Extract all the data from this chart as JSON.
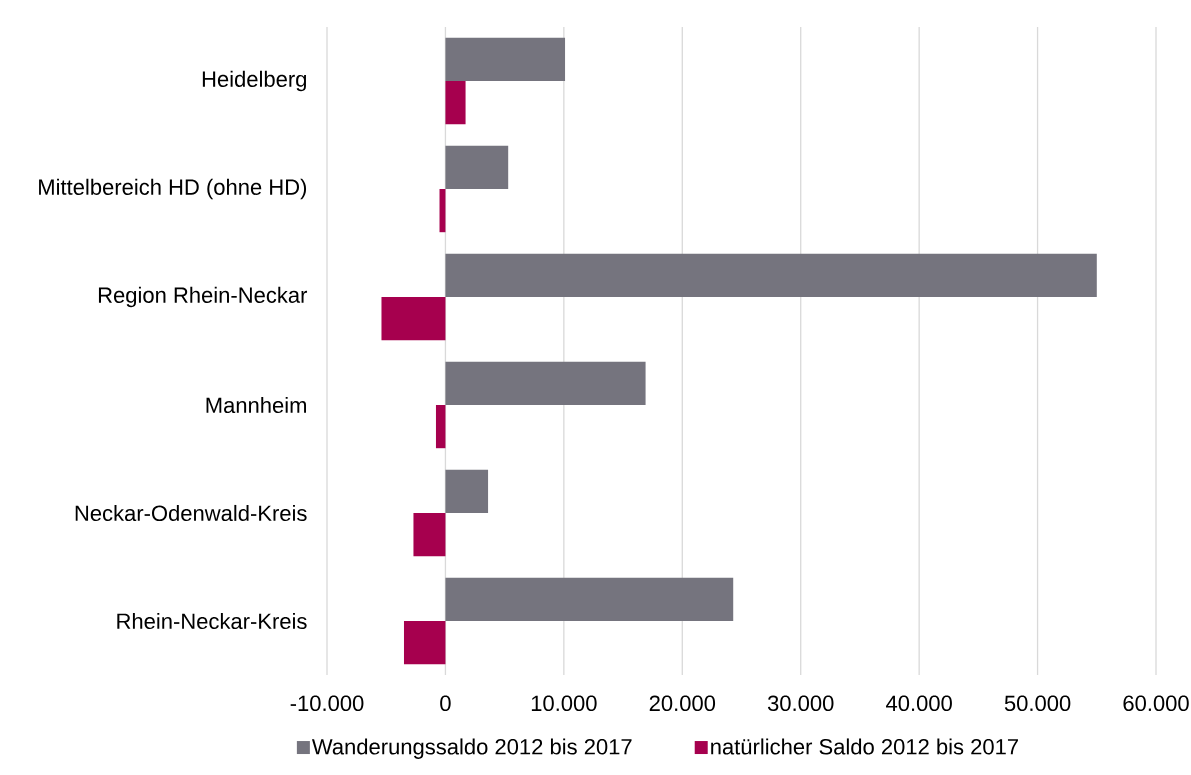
{
  "chart_data": {
    "type": "bar",
    "orientation": "horizontal",
    "categories": [
      "Heidelberg",
      "Mittelbereich HD (ohne HD)",
      "Region Rhein-Neckar",
      "Mannheim",
      "Neckar-Odenwald-Kreis",
      "Rhein-Neckar-Kreis"
    ],
    "series": [
      {
        "name": "Wanderungssaldo 2012 bis 2017",
        "color": "#75747e",
        "values": [
          10100,
          5300,
          55000,
          16900,
          3600,
          24300
        ]
      },
      {
        "name": "natürlicher Saldo 2012 bis 2017",
        "color": "#a6004e",
        "values": [
          1700,
          -500,
          -5400,
          -800,
          -2700,
          -3500
        ]
      }
    ],
    "xlim": [
      -10000,
      60000
    ],
    "xticks": [
      {
        "value": -10000,
        "label": "-10.000"
      },
      0,
      {
        "value": 10000,
        "label": "10.000"
      },
      {
        "value": 20000,
        "label": "20.000"
      },
      {
        "value": 30000,
        "label": "30.000"
      },
      {
        "value": 40000,
        "label": "40.000"
      },
      {
        "value": 50000,
        "label": "50.000"
      },
      {
        "value": 60000,
        "label": "60.000"
      }
    ],
    "grid": "x",
    "legend": "bottom"
  }
}
